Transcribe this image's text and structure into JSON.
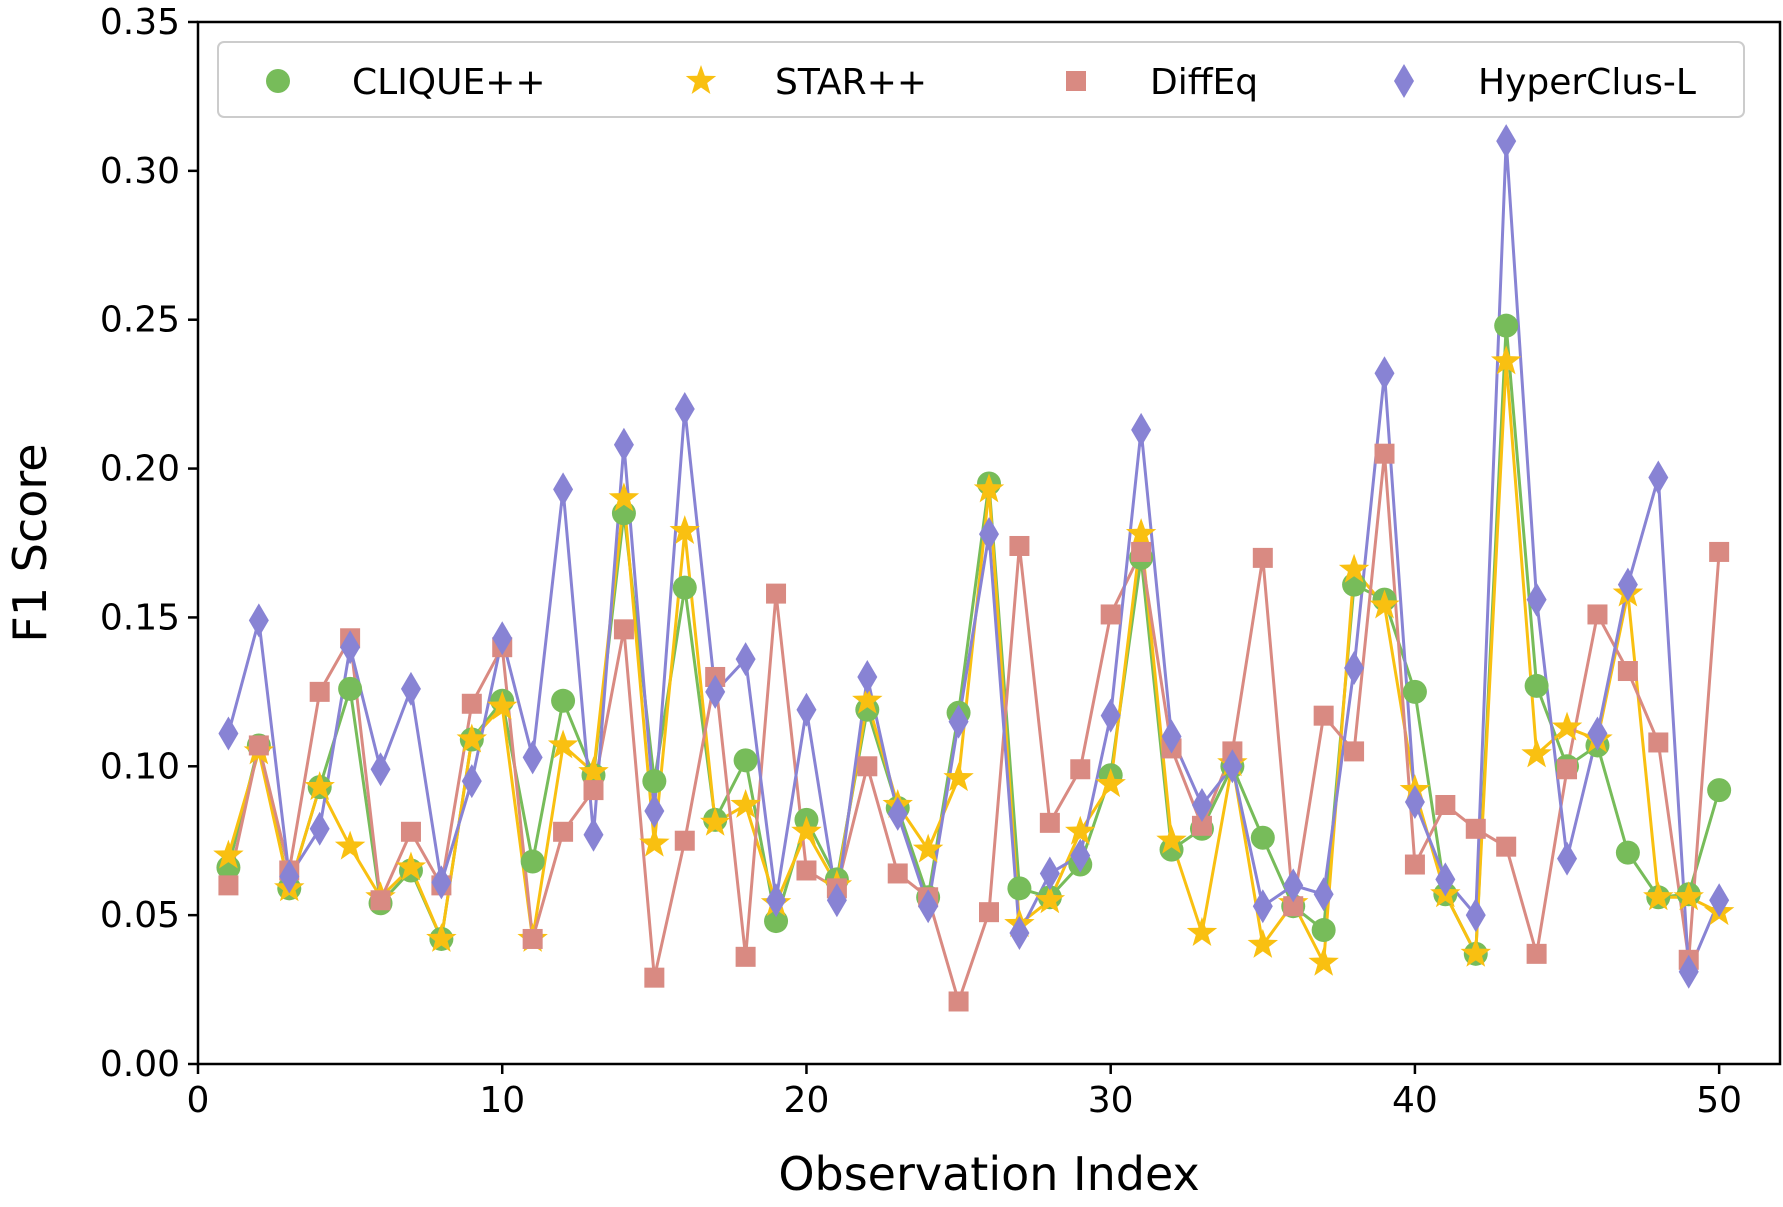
{
  "chart_data": {
    "type": "line",
    "title": "",
    "xlabel": "Observation Index",
    "ylabel": "F1 Score",
    "xlim": [
      0,
      52
    ],
    "ylim": [
      0,
      0.35
    ],
    "xticks": [
      0,
      10,
      20,
      30,
      40,
      50
    ],
    "yticks": [
      0,
      0.05,
      0.1,
      0.15,
      0.2,
      0.25,
      0.3,
      0.35
    ],
    "xtick_labels": [
      "0",
      "10",
      "20",
      "30",
      "40",
      "50"
    ],
    "ytick_labels": [
      "0.00",
      "0.05",
      "0.10",
      "0.15",
      "0.20",
      "0.25",
      "0.30",
      "0.35"
    ],
    "grid": false,
    "legend_position": "top",
    "x": [
      1,
      2,
      3,
      4,
      5,
      6,
      7,
      8,
      9,
      10,
      11,
      12,
      13,
      14,
      15,
      16,
      17,
      18,
      19,
      20,
      21,
      22,
      23,
      24,
      25,
      26,
      27,
      28,
      29,
      30,
      31,
      32,
      33,
      34,
      35,
      36,
      37,
      38,
      39,
      40,
      41,
      42,
      43,
      44,
      45,
      46,
      47,
      48,
      49,
      50
    ],
    "series": [
      {
        "name": "CLIQUE++",
        "color": "#77bc5a",
        "marker": "circle",
        "values": [
          0.066,
          0.107,
          0.059,
          0.093,
          0.126,
          0.054,
          0.065,
          0.042,
          0.109,
          0.122,
          0.068,
          0.122,
          0.097,
          0.185,
          0.095,
          0.16,
          0.082,
          0.102,
          0.048,
          0.082,
          0.062,
          0.119,
          0.086,
          0.056,
          0.118,
          0.195,
          0.059,
          0.056,
          0.067,
          0.097,
          0.17,
          0.072,
          0.079,
          0.1,
          0.076,
          0.053,
          0.045,
          0.161,
          0.156,
          0.125,
          0.057,
          0.037,
          0.248,
          0.127,
          0.1,
          0.107,
          0.071,
          0.056,
          0.057,
          0.092
        ]
      },
      {
        "name": "STAR++",
        "color": "#f9c011",
        "marker": "star",
        "values": [
          0.07,
          0.105,
          0.059,
          0.093,
          0.073,
          0.056,
          0.066,
          0.042,
          0.109,
          0.12,
          0.042,
          0.107,
          0.098,
          0.19,
          0.074,
          0.179,
          0.081,
          0.087,
          0.054,
          0.078,
          0.06,
          0.122,
          0.087,
          0.072,
          0.096,
          0.193,
          0.047,
          0.055,
          0.078,
          0.094,
          0.178,
          0.075,
          0.044,
          0.101,
          0.04,
          0.054,
          0.034,
          0.166,
          0.154,
          0.092,
          0.057,
          0.037,
          0.236,
          0.104,
          0.113,
          0.109,
          0.158,
          0.056,
          0.056,
          0.051
        ]
      },
      {
        "name": "DiffEq",
        "color": "#d98a82",
        "marker": "square",
        "values": [
          0.06,
          0.107,
          0.065,
          0.125,
          0.143,
          0.055,
          0.078,
          0.06,
          0.121,
          0.14,
          0.042,
          0.078,
          0.092,
          0.146,
          0.029,
          0.075,
          0.13,
          0.036,
          0.158,
          0.065,
          0.059,
          0.1,
          0.064,
          0.056,
          0.021,
          0.051,
          0.174,
          0.081,
          0.099,
          0.151,
          0.172,
          0.106,
          0.08,
          0.105,
          0.17,
          0.053,
          0.117,
          0.105,
          0.205,
          0.067,
          0.087,
          0.079,
          0.073,
          0.037,
          0.099,
          0.151,
          0.132,
          0.108,
          0.035,
          0.172
        ]
      },
      {
        "name": "HyperClus-L",
        "color": "#8883d4",
        "marker": "diamond",
        "values": [
          0.111,
          0.149,
          0.063,
          0.079,
          0.14,
          0.099,
          0.126,
          0.061,
          0.095,
          0.143,
          0.103,
          0.193,
          0.077,
          0.208,
          0.085,
          0.22,
          0.125,
          0.136,
          0.055,
          0.119,
          0.055,
          0.13,
          0.084,
          0.053,
          0.115,
          0.178,
          0.044,
          0.064,
          0.07,
          0.117,
          0.213,
          0.11,
          0.087,
          0.1,
          0.053,
          0.06,
          0.057,
          0.133,
          0.232,
          0.088,
          0.062,
          0.05,
          0.31,
          0.156,
          0.069,
          0.111,
          0.161,
          0.197,
          0.031,
          0.055
        ]
      }
    ]
  }
}
